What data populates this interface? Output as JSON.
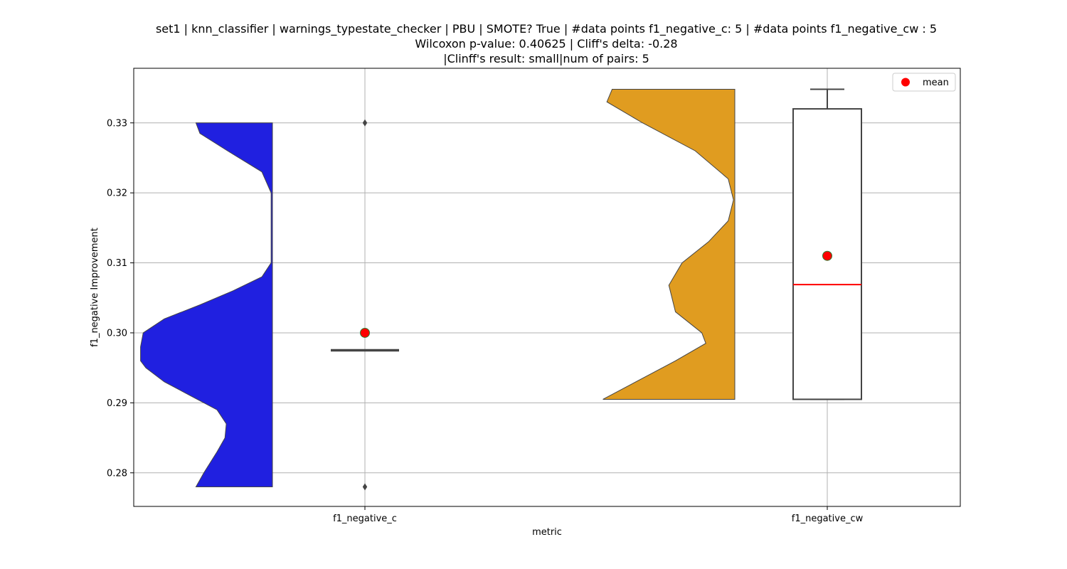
{
  "chart_data": {
    "type": "violin-box",
    "title_lines": [
      "set1 | knn_classifier | warnings_typestate_checker | PBU | SMOTE? True | #data points f1_negative_c: 5 | #data points f1_negative_cw : 5",
      "Wilcoxon p-value: 0.40625 | Cliff's delta: -0.28",
      "|Clinff's result: small|num of pairs: 5"
    ],
    "xlabel": "metric",
    "ylabel": "f1_negative Improvement",
    "ylim": [
      0.2752,
      0.3378
    ],
    "yticks": [
      0.28,
      0.29,
      0.3,
      0.31,
      0.32,
      0.33
    ],
    "ytick_labels": [
      "0.28",
      "0.29",
      "0.30",
      "0.31",
      "0.32",
      "0.33"
    ],
    "categories": [
      "f1_negative_c",
      "f1_negative_cw"
    ],
    "grid": true,
    "legend": {
      "position": "top-right",
      "entries": [
        {
          "label": "mean",
          "color": "#ff0000"
        }
      ]
    },
    "series": [
      {
        "category": "f1_negative_c",
        "violin_color": "#2020e0",
        "violin_min": 0.278,
        "violin_max": 0.33,
        "violin_profile": [
          [
            0.278,
            0.58
          ],
          [
            0.28,
            0.52
          ],
          [
            0.283,
            0.42
          ],
          [
            0.285,
            0.36
          ],
          [
            0.287,
            0.35
          ],
          [
            0.289,
            0.42
          ],
          [
            0.291,
            0.62
          ],
          [
            0.293,
            0.82
          ],
          [
            0.295,
            0.96
          ],
          [
            0.296,
            1.0
          ],
          [
            0.298,
            1.0
          ],
          [
            0.3,
            0.98
          ],
          [
            0.302,
            0.82
          ],
          [
            0.304,
            0.55
          ],
          [
            0.306,
            0.3
          ],
          [
            0.308,
            0.08
          ],
          [
            0.31,
            0.01
          ],
          [
            0.32,
            0.01
          ],
          [
            0.323,
            0.08
          ],
          [
            0.326,
            0.34
          ],
          [
            0.3285,
            0.55
          ],
          [
            0.33,
            0.58
          ]
        ],
        "box": {
          "q1": 0.2975,
          "median": 0.2975,
          "q3": 0.2975,
          "whisker_low": 0.2975,
          "whisker_high": 0.2975
        },
        "outliers": [
          0.33,
          0.278
        ],
        "mean": 0.3,
        "median_color": "#444444"
      },
      {
        "category": "f1_negative_cw",
        "violin_color": "#e09c20",
        "violin_min": 0.2905,
        "violin_max": 0.3348,
        "violin_profile": [
          [
            0.2905,
            1.0
          ],
          [
            0.293,
            0.75
          ],
          [
            0.296,
            0.45
          ],
          [
            0.2985,
            0.22
          ],
          [
            0.3,
            0.25
          ],
          [
            0.303,
            0.45
          ],
          [
            0.3068,
            0.5
          ],
          [
            0.31,
            0.4
          ],
          [
            0.313,
            0.2
          ],
          [
            0.316,
            0.05
          ],
          [
            0.319,
            0.01
          ],
          [
            0.322,
            0.05
          ],
          [
            0.326,
            0.3
          ],
          [
            0.33,
            0.7
          ],
          [
            0.333,
            0.97
          ],
          [
            0.3348,
            0.93
          ]
        ],
        "box": {
          "q1": 0.2905,
          "median": 0.3069,
          "q3": 0.332,
          "whisker_low": 0.2905,
          "whisker_high": 0.3348
        },
        "outliers": [],
        "mean": 0.311,
        "median_color": "#ff0000"
      }
    ]
  }
}
